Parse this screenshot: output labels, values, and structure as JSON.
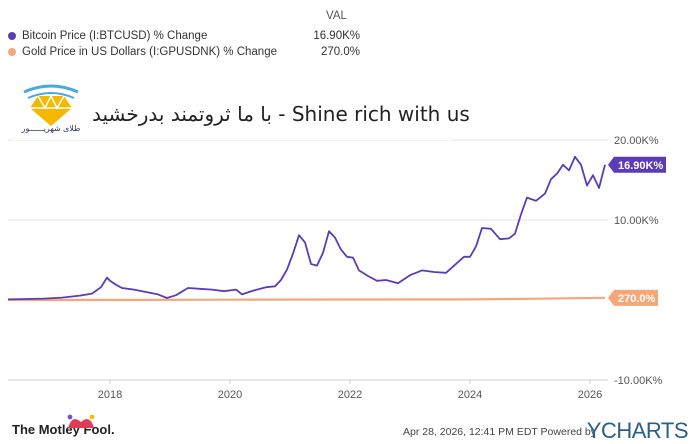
{
  "legend": {
    "header": "VAL",
    "items": [
      {
        "name": "Bitcoin Price (I:BTCUSD) % Change",
        "value": "16.90K%",
        "color": "#5b3cb8"
      },
      {
        "name": "Gold Price in US Dollars (I:GPUSDNK) % Change",
        "value": "270.0%",
        "color": "#f5a77a"
      }
    ]
  },
  "watermark": {
    "caption": "طلای شهریــــــور",
    "text": "با ما ثروتمند بدرخشید - Shine rich with us"
  },
  "footer": {
    "brand": "The Motley Fool.",
    "credit": "Apr 28, 2026, 12:41 PM EDT Powered by",
    "ycharts": "YCHARTS"
  },
  "chart_data": {
    "type": "line",
    "xlabel": "",
    "ylabel": "",
    "x_ticks": [
      "2018",
      "2020",
      "2022",
      "2024",
      "2026"
    ],
    "y_ticks": [
      "20.00K%",
      "10.00K%",
      "-10.00K%"
    ],
    "ylim": [
      -10000,
      30000
    ],
    "grid": "horizontal",
    "end_labels": [
      "16.90K%",
      "270.0%"
    ],
    "series": [
      {
        "name": "Bitcoin Price (I:BTCUSD) % Change",
        "color": "#5b3cb8",
        "x": [
          2016.3,
          2016.6,
          2016.9,
          2017.2,
          2017.5,
          2017.7,
          2017.85,
          2017.95,
          2018.0,
          2018.1,
          2018.2,
          2018.4,
          2018.6,
          2018.8,
          2018.95,
          2019.1,
          2019.3,
          2019.5,
          2019.7,
          2019.9,
          2020.1,
          2020.2,
          2020.4,
          2020.6,
          2020.75,
          2020.85,
          2020.95,
          2021.05,
          2021.15,
          2021.25,
          2021.35,
          2021.45,
          2021.55,
          2021.65,
          2021.75,
          2021.85,
          2021.95,
          2022.05,
          2022.15,
          2022.3,
          2022.45,
          2022.6,
          2022.8,
          2023.0,
          2023.2,
          2023.4,
          2023.6,
          2023.75,
          2023.9,
          2024.0,
          2024.1,
          2024.2,
          2024.35,
          2024.5,
          2024.65,
          2024.75,
          2024.85,
          2024.95,
          2025.1,
          2025.25,
          2025.35,
          2025.45,
          2025.55,
          2025.65,
          2025.75,
          2025.85,
          2025.95,
          2026.05,
          2026.15,
          2026.25
        ],
        "values": [
          80,
          120,
          180,
          300,
          550,
          800,
          1600,
          2800,
          2400,
          1900,
          1500,
          1300,
          1000,
          700,
          250,
          600,
          1500,
          1400,
          1300,
          1100,
          1300,
          700,
          1200,
          1600,
          1700,
          2500,
          3800,
          5800,
          8100,
          7200,
          4500,
          4300,
          5900,
          8600,
          7800,
          6300,
          5400,
          5300,
          3700,
          3000,
          2400,
          2500,
          2100,
          3100,
          3700,
          3500,
          3400,
          4400,
          5400,
          5400,
          6700,
          9000,
          8900,
          7600,
          7700,
          8300,
          10700,
          12800,
          12400,
          13300,
          15100,
          15800,
          16900,
          16200,
          17900,
          16900,
          14300,
          15600,
          14000,
          16900
        ]
      },
      {
        "name": "Gold Price in US Dollars (I:GPUSDNK) % Change",
        "color": "#f5a77a",
        "x": [
          2016.3,
          2018.0,
          2020.0,
          2022.0,
          2024.0,
          2025.0,
          2026.25
        ],
        "values": [
          0,
          10,
          40,
          60,
          80,
          150,
          270
        ]
      }
    ]
  }
}
